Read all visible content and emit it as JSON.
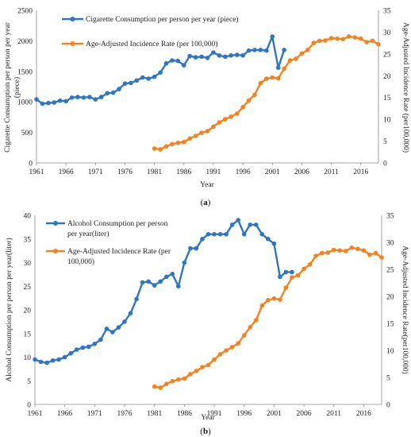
{
  "chart_data": [
    {
      "type": "line",
      "caption": "(a)",
      "xlabel": "Year",
      "ylabel": "Cigarette Consumption per person per year (piece)",
      "y2label": "Age-Adjusted Incidence Rate (per100,000)",
      "xlim": [
        1961,
        2019
      ],
      "ylim": [
        0,
        2500
      ],
      "y2lim": [
        0,
        35
      ],
      "x_ticks": [
        "1961",
        "1966",
        "1971",
        "1976",
        "1981",
        "1986",
        "1991",
        "1996",
        "2001",
        "2006",
        "2011",
        "2016"
      ],
      "y_ticks": [
        "0",
        "500",
        "1000",
        "1500",
        "2000",
        "2500"
      ],
      "y2_ticks": [
        "0",
        "5",
        "10",
        "15",
        "20",
        "25",
        "30",
        "35"
      ],
      "legend": [
        "Cigarette Consumption per person per year (piece)",
        "Age-Adjusted Incidence Rate (per 100,000)"
      ],
      "series": [
        {
          "name": "Cigarette Consumption per person per year (piece)",
          "axis": "left",
          "color": "#2e75c4",
          "x": [
            1961,
            1962,
            1963,
            1964,
            1965,
            1966,
            1967,
            1968,
            1969,
            1970,
            1971,
            1972,
            1973,
            1974,
            1975,
            1976,
            1977,
            1978,
            1979,
            1980,
            1981,
            1982,
            1983,
            1984,
            1985,
            1986,
            1987,
            1988,
            1989,
            1990,
            1991,
            1992,
            1993,
            1994,
            1995,
            1996,
            1997,
            1998,
            1999,
            2000,
            2001,
            2002,
            2003
          ],
          "values": [
            1040,
            970,
            980,
            990,
            1020,
            1010,
            1070,
            1080,
            1070,
            1080,
            1040,
            1080,
            1140,
            1150,
            1210,
            1300,
            1310,
            1350,
            1400,
            1380,
            1410,
            1480,
            1630,
            1680,
            1670,
            1600,
            1750,
            1730,
            1740,
            1720,
            1810,
            1760,
            1740,
            1760,
            1770,
            1760,
            1840,
            1850,
            1850,
            1840,
            2070,
            1560,
            1850
          ]
        },
        {
          "name": "Age-Adjusted Incidence Rate (per 100,000)",
          "axis": "right",
          "color": "#f5821f",
          "x": [
            1981,
            1982,
            1983,
            1984,
            1985,
            1986,
            1987,
            1988,
            1989,
            1990,
            1991,
            1992,
            1993,
            1994,
            1995,
            1996,
            1997,
            1998,
            1999,
            2000,
            2001,
            2002,
            2003,
            2004,
            2005,
            2006,
            2007,
            2008,
            2009,
            2010,
            2011,
            2012,
            2013,
            2014,
            2015,
            2016,
            2017,
            2018,
            2019
          ],
          "values": [
            3.3,
            3.1,
            3.8,
            4.3,
            4.6,
            4.8,
            5.6,
            6.2,
            6.9,
            7.3,
            8.3,
            9.3,
            10.0,
            10.6,
            11.3,
            12.8,
            14.3,
            15.6,
            18.3,
            19.3,
            19.6,
            19.4,
            21.6,
            23.5,
            23.9,
            25.1,
            25.9,
            27.5,
            28.0,
            28.1,
            28.6,
            28.5,
            28.4,
            29.0,
            28.8,
            28.5,
            27.7,
            28.0,
            27.2
          ]
        }
      ]
    },
    {
      "type": "line",
      "caption": "(b)",
      "xlabel": "Year",
      "ylabel": "Alcohol Consumption per person per year(liter)",
      "y2label": "Age-Adjusted Incidence Rate(per100,000)",
      "xlim": [
        1961,
        2019
      ],
      "ylim": [
        0,
        40
      ],
      "y2lim": [
        0,
        35
      ],
      "x_ticks": [
        "1961",
        "1966",
        "1971",
        "1976",
        "1981",
        "1986",
        "1991",
        "1996",
        "2001",
        "2006",
        "2011",
        "2016"
      ],
      "y_ticks": [
        "0",
        "5",
        "10",
        "15",
        "20",
        "25",
        "30",
        "35",
        "40"
      ],
      "y2_ticks": [
        "0",
        "5",
        "10",
        "15",
        "20",
        "25",
        "30",
        "35"
      ],
      "legend": [
        "Alcohol Consumption per person per year(liter)",
        "Age-Adjusted Incidence Rate (per 100,000)"
      ],
      "series": [
        {
          "name": "Alcohol Consumption per person per year(liter)",
          "axis": "left",
          "color": "#2e75c4",
          "x": [
            1961,
            1962,
            1963,
            1964,
            1965,
            1966,
            1967,
            1968,
            1969,
            1970,
            1971,
            1972,
            1973,
            1974,
            1975,
            1976,
            1977,
            1978,
            1979,
            1980,
            1981,
            1982,
            1983,
            1984,
            1985,
            1986,
            1987,
            1988,
            1989,
            1990,
            1991,
            1992,
            1993,
            1994,
            1995,
            1996,
            1997,
            1998,
            1999,
            2000,
            2001,
            2002,
            2003,
            2004
          ],
          "values": [
            9.5,
            9.0,
            8.8,
            9.3,
            9.5,
            10.0,
            10.8,
            11.6,
            12.0,
            12.2,
            12.8,
            13.7,
            16.0,
            15.3,
            16.3,
            17.5,
            19.3,
            22.3,
            25.8,
            26.0,
            25.2,
            26.0,
            27.0,
            27.6,
            25.0,
            30.0,
            33.0,
            33.0,
            35.0,
            36.0,
            36.0,
            36.0,
            36.0,
            38.0,
            39.0,
            36.0,
            38.0,
            38.0,
            36.0,
            35.0,
            34.0,
            27.0,
            28.0,
            28.0
          ]
        },
        {
          "name": "Age-Adjusted Incidence Rate (per 100,000)",
          "axis": "right",
          "color": "#f5821f",
          "x": [
            1981,
            1982,
            1983,
            1984,
            1985,
            1986,
            1987,
            1988,
            1989,
            1990,
            1991,
            1992,
            1993,
            1994,
            1995,
            1996,
            1997,
            1998,
            1999,
            2000,
            2001,
            2002,
            2003,
            2004,
            2005,
            2006,
            2007,
            2008,
            2009,
            2010,
            2011,
            2012,
            2013,
            2014,
            2015,
            2016,
            2017,
            2018,
            2019
          ],
          "values": [
            3.3,
            3.1,
            3.8,
            4.3,
            4.6,
            4.8,
            5.6,
            6.2,
            6.9,
            7.3,
            8.3,
            9.3,
            10.0,
            10.6,
            11.3,
            12.8,
            14.3,
            15.6,
            18.3,
            19.3,
            19.6,
            19.4,
            21.6,
            23.5,
            23.9,
            25.1,
            25.9,
            27.5,
            28.0,
            28.1,
            28.6,
            28.5,
            28.4,
            29.0,
            28.8,
            28.5,
            27.7,
            28.0,
            27.2
          ]
        }
      ]
    }
  ],
  "text": {
    "a_xlabel": "Year",
    "a_ylabel": "Cigarette Consumption per person per year",
    "a_ylabel2": "(piece)",
    "a_y2label": "Age-Adjusted Incidence Rate (per100,000)",
    "a_legend1": "Cigarette Consumption per person per year (piece)",
    "a_legend2": "Age-Adjusted Incidence Rate (per 100,000)",
    "a_caption_open": "(",
    "a_caption_letter": "a",
    "a_caption_close": ")",
    "b_xlabel": "Year",
    "b_ylabel": "Alcohol Consumption per person per year(liter)",
    "b_y2label": "Age-Adjusted Incidence Rate(per100,000)",
    "b_legend1a": "Alcohol Consumption per person",
    "b_legend1b": "per year(liter)",
    "b_legend2a": "Age-Adjusted Incidence Rate (per",
    "b_legend2b": "100,000)",
    "b_caption_open": "(",
    "b_caption_letter": "b",
    "b_caption_close": ")"
  }
}
